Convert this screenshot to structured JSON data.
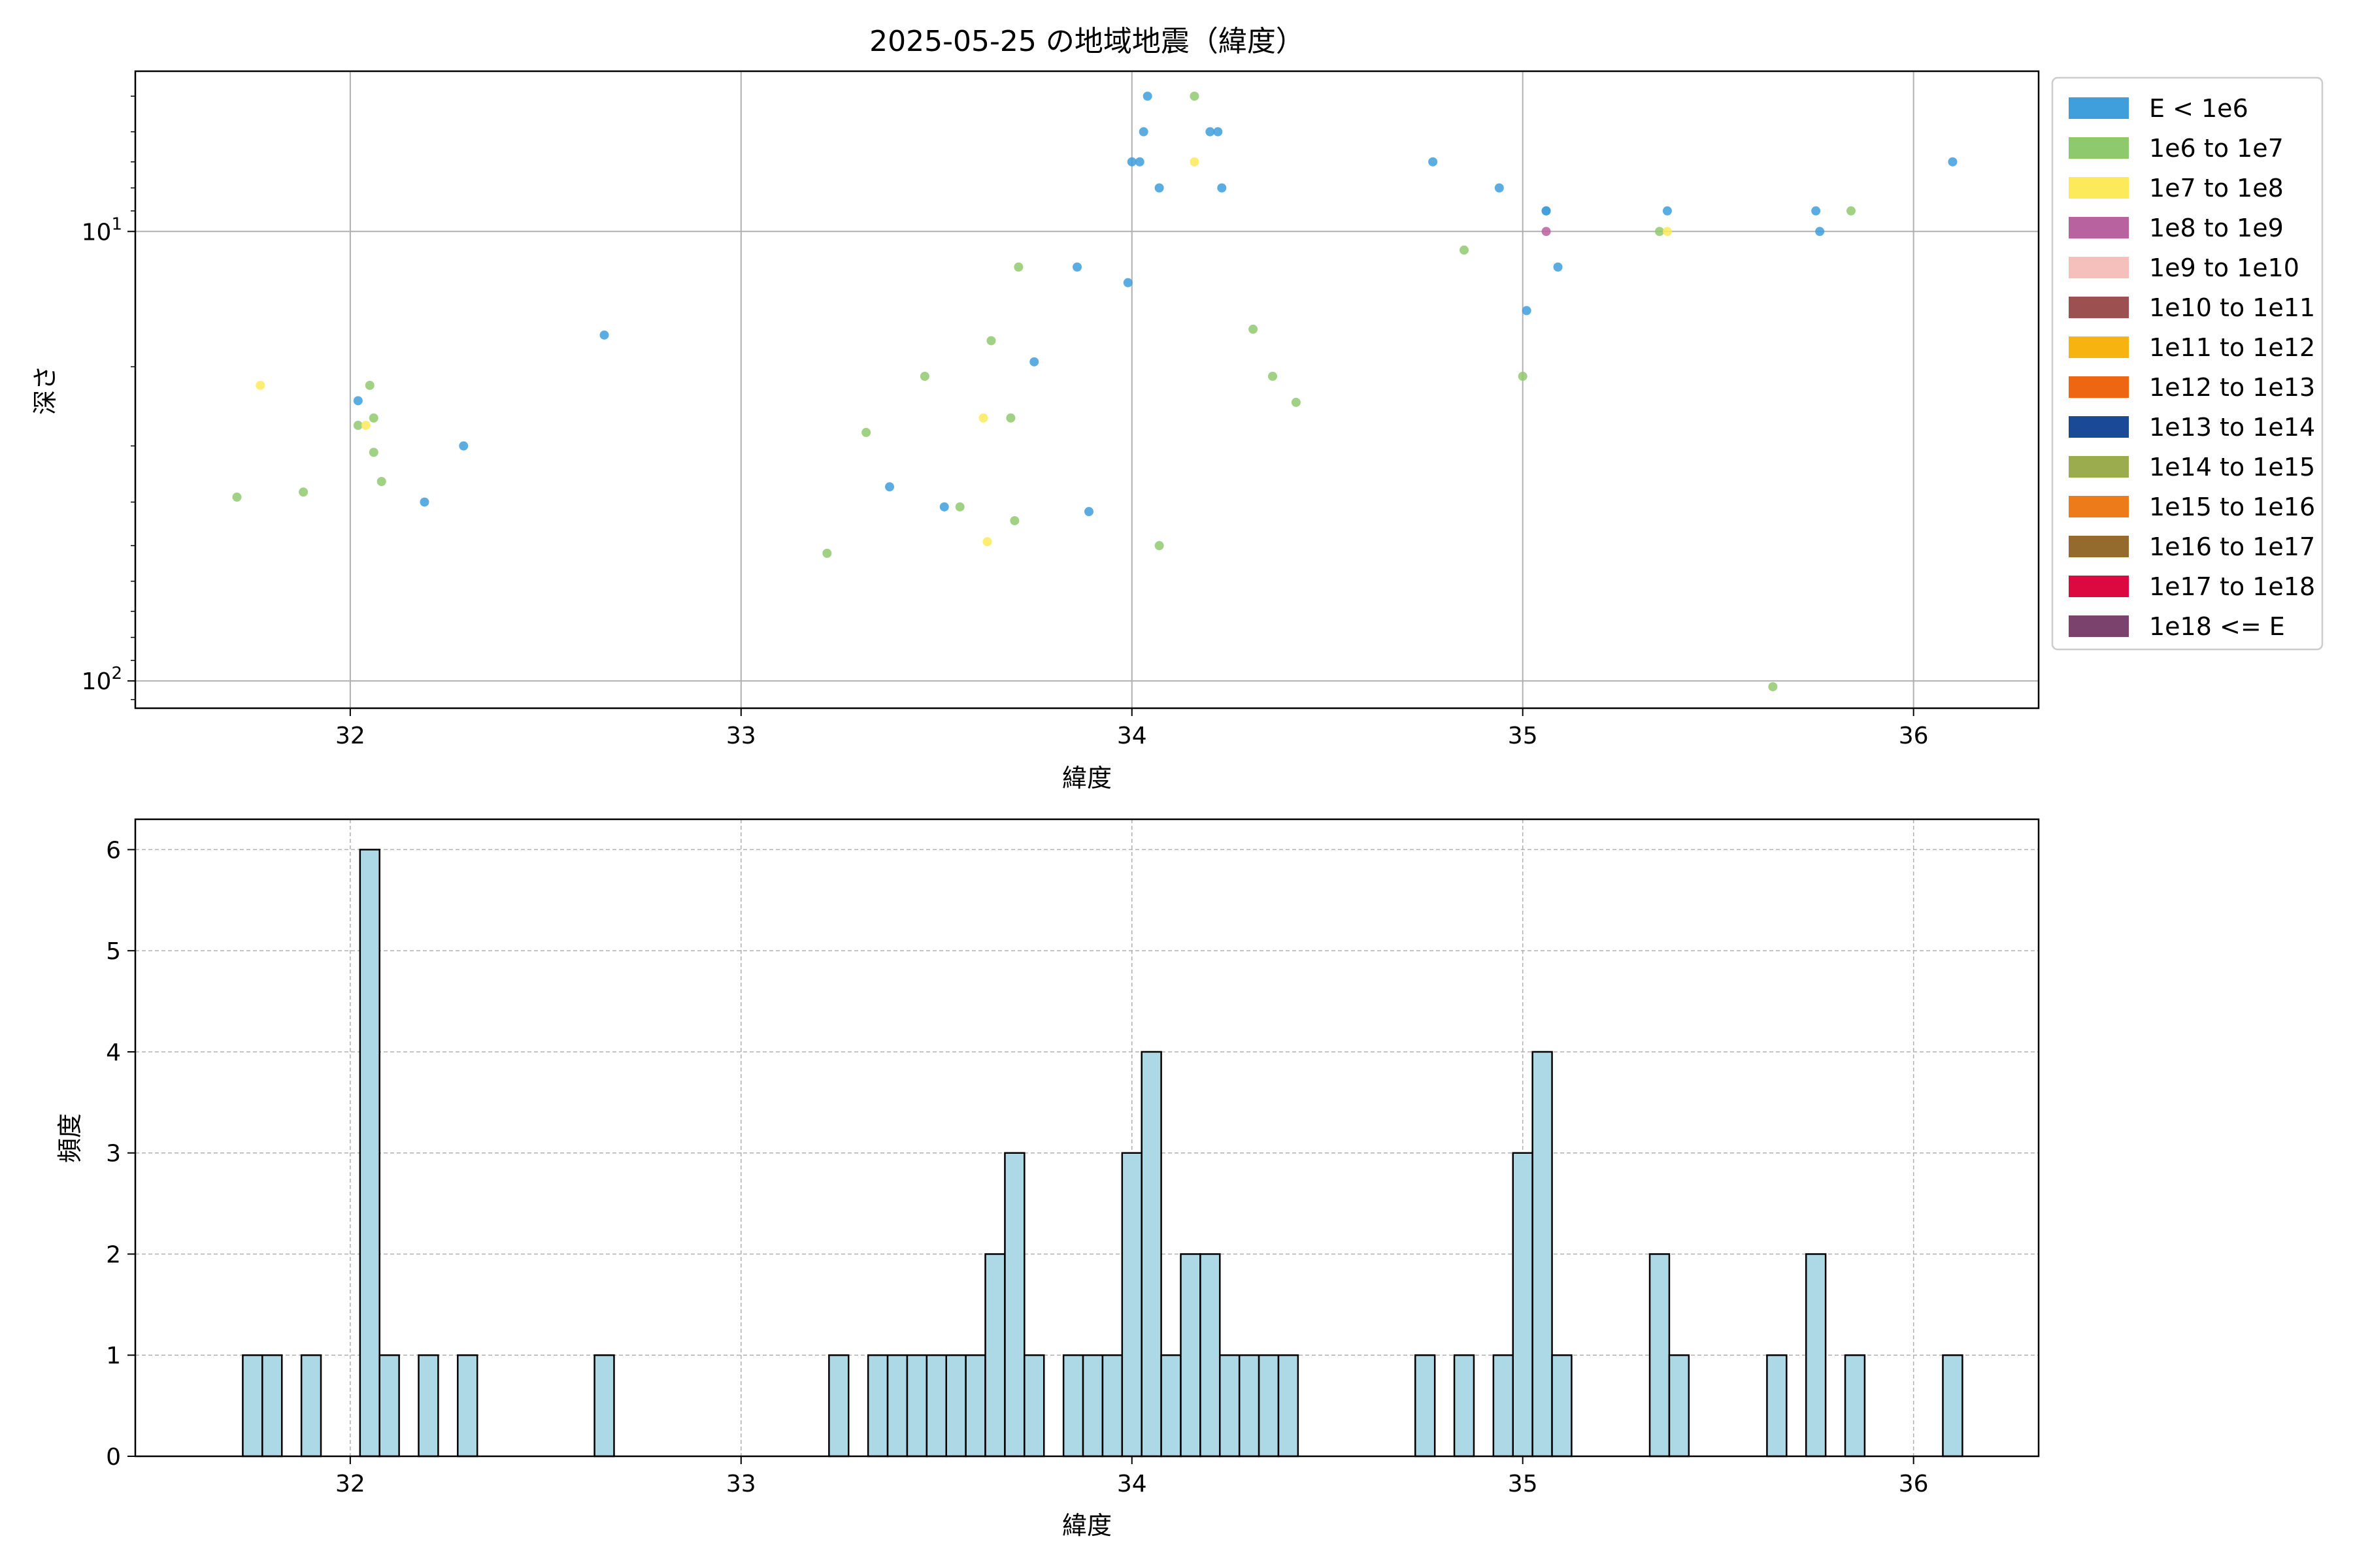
{
  "chart_data": [
    {
      "type": "scatter",
      "title": "2025-05-25 の地域地震（緯度）",
      "xlabel": "緯度",
      "ylabel": "深さ",
      "xlim": [
        31.45,
        36.32
      ],
      "ylim": [
        115,
        4.4
      ],
      "y_scale": "log (inverted)",
      "x_ticks": [
        "32",
        "33",
        "34",
        "35",
        "36"
      ],
      "y_ticks": [
        {
          "value": 10,
          "base": "10",
          "exp": "1"
        },
        {
          "value": 100,
          "base": "10",
          "exp": "2"
        }
      ],
      "grid": true,
      "legend_position": "outside right",
      "legend": [
        {
          "label": "E < 1e6",
          "color": "#3e9fdc"
        },
        {
          "label": "1e6 to 1e7",
          "color": "#8fc96e"
        },
        {
          "label": "1e7 to 1e8",
          "color": "#fdea5b"
        },
        {
          "label": "1e8 to 1e9",
          "color": "#b8629f"
        },
        {
          "label": "1e9 to 1e10",
          "color": "#f5c0bc"
        },
        {
          "label": "1e10 to 1e11",
          "color": "#9c5150"
        },
        {
          "label": "1e11 to 1e12",
          "color": "#f7b410"
        },
        {
          "label": "1e12 to 1e13",
          "color": "#ee6611"
        },
        {
          "label": "1e13 to 1e14",
          "color": "#1a4a97"
        },
        {
          "label": "1e14 to 1e15",
          "color": "#9aac4e"
        },
        {
          "label": "1e15 to 1e16",
          "color": "#ee7b1a"
        },
        {
          "label": "1e16 to 1e17",
          "color": "#946a2d"
        },
        {
          "label": "1e17 to 1e18",
          "color": "#dc0840"
        },
        {
          "label": "1e18 <= E",
          "color": "#7b426e"
        }
      ],
      "series": [
        {
          "category": "E < 1e6",
          "points": [
            [
              32.02,
              23.8
            ],
            [
              32.19,
              40
            ],
            [
              32.29,
              30
            ],
            [
              32.65,
              17
            ],
            [
              33.38,
              37
            ],
            [
              33.52,
              41
            ],
            [
              33.75,
              19.5
            ],
            [
              33.86,
              12
            ],
            [
              33.89,
              42
            ],
            [
              33.99,
              13
            ],
            [
              34.0,
              7
            ],
            [
              34.02,
              7
            ],
            [
              34.03,
              6
            ],
            [
              34.04,
              5
            ],
            [
              34.07,
              8
            ],
            [
              34.2,
              6
            ],
            [
              34.22,
              6
            ],
            [
              34.23,
              8
            ],
            [
              34.77,
              7
            ],
            [
              34.94,
              8
            ],
            [
              35.01,
              15
            ],
            [
              35.06,
              9
            ],
            [
              35.06,
              9
            ],
            [
              35.09,
              12
            ],
            [
              35.37,
              9
            ],
            [
              35.75,
              9
            ],
            [
              35.76,
              10
            ],
            [
              36.1,
              7
            ]
          ]
        },
        {
          "category": "1e6 to 1e7",
          "points": [
            [
              31.71,
              39
            ],
            [
              31.88,
              38
            ],
            [
              32.02,
              27
            ],
            [
              32.05,
              22
            ],
            [
              32.06,
              26
            ],
            [
              32.06,
              31
            ],
            [
              32.08,
              36
            ],
            [
              33.22,
              52
            ],
            [
              33.32,
              28
            ],
            [
              33.47,
              21
            ],
            [
              33.56,
              41
            ],
            [
              33.64,
              17.5
            ],
            [
              33.69,
              26
            ],
            [
              33.7,
              44
            ],
            [
              33.71,
              12
            ],
            [
              34.07,
              50
            ],
            [
              34.16,
              5
            ],
            [
              34.31,
              16.5
            ],
            [
              34.36,
              21
            ],
            [
              34.42,
              24
            ],
            [
              34.85,
              11
            ],
            [
              35.0,
              21
            ],
            [
              35.35,
              10
            ],
            [
              35.64,
              103
            ],
            [
              35.84,
              9
            ]
          ]
        },
        {
          "category": "1e7 to 1e8",
          "points": [
            [
              31.77,
              22
            ],
            [
              32.04,
              27
            ],
            [
              33.62,
              26
            ],
            [
              33.63,
              49
            ],
            [
              34.16,
              7
            ],
            [
              35.37,
              10
            ]
          ]
        },
        {
          "category": "1e8 to 1e9",
          "points": [
            [
              35.06,
              10
            ]
          ]
        }
      ]
    },
    {
      "type": "bar",
      "title": "",
      "xlabel": "緯度",
      "ylabel": "頻度",
      "xlim": [
        31.45,
        36.32
      ],
      "ylim": [
        0,
        6.3
      ],
      "x_ticks": [
        "32",
        "33",
        "34",
        "35",
        "36"
      ],
      "y_ticks": [
        "0",
        "1",
        "2",
        "3",
        "4",
        "5",
        "6"
      ],
      "grid": true,
      "bar_color": "#add8e6",
      "bin_width": 0.05,
      "bins": [
        {
          "x": 31.75,
          "count": 1
        },
        {
          "x": 31.8,
          "count": 1
        },
        {
          "x": 31.9,
          "count": 1
        },
        {
          "x": 32.05,
          "count": 6
        },
        {
          "x": 32.1,
          "count": 1
        },
        {
          "x": 32.2,
          "count": 1
        },
        {
          "x": 32.3,
          "count": 1
        },
        {
          "x": 32.65,
          "count": 1
        },
        {
          "x": 33.25,
          "count": 1
        },
        {
          "x": 33.35,
          "count": 1
        },
        {
          "x": 33.4,
          "count": 1
        },
        {
          "x": 33.45,
          "count": 1
        },
        {
          "x": 33.5,
          "count": 1
        },
        {
          "x": 33.55,
          "count": 1
        },
        {
          "x": 33.6,
          "count": 1
        },
        {
          "x": 33.65,
          "count": 2
        },
        {
          "x": 33.7,
          "count": 3
        },
        {
          "x": 33.75,
          "count": 1
        },
        {
          "x": 33.85,
          "count": 1
        },
        {
          "x": 33.9,
          "count": 1
        },
        {
          "x": 33.95,
          "count": 1
        },
        {
          "x": 34.0,
          "count": 3
        },
        {
          "x": 34.05,
          "count": 4
        },
        {
          "x": 34.1,
          "count": 1
        },
        {
          "x": 34.15,
          "count": 2
        },
        {
          "x": 34.2,
          "count": 2
        },
        {
          "x": 34.25,
          "count": 1
        },
        {
          "x": 34.3,
          "count": 1
        },
        {
          "x": 34.35,
          "count": 1
        },
        {
          "x": 34.4,
          "count": 1
        },
        {
          "x": 34.75,
          "count": 1
        },
        {
          "x": 34.85,
          "count": 1
        },
        {
          "x": 34.95,
          "count": 1
        },
        {
          "x": 35.0,
          "count": 3
        },
        {
          "x": 35.05,
          "count": 4
        },
        {
          "x": 35.1,
          "count": 1
        },
        {
          "x": 35.35,
          "count": 2
        },
        {
          "x": 35.4,
          "count": 1
        },
        {
          "x": 35.65,
          "count": 1
        },
        {
          "x": 35.75,
          "count": 2
        },
        {
          "x": 35.85,
          "count": 1
        },
        {
          "x": 36.1,
          "count": 1
        }
      ]
    }
  ]
}
